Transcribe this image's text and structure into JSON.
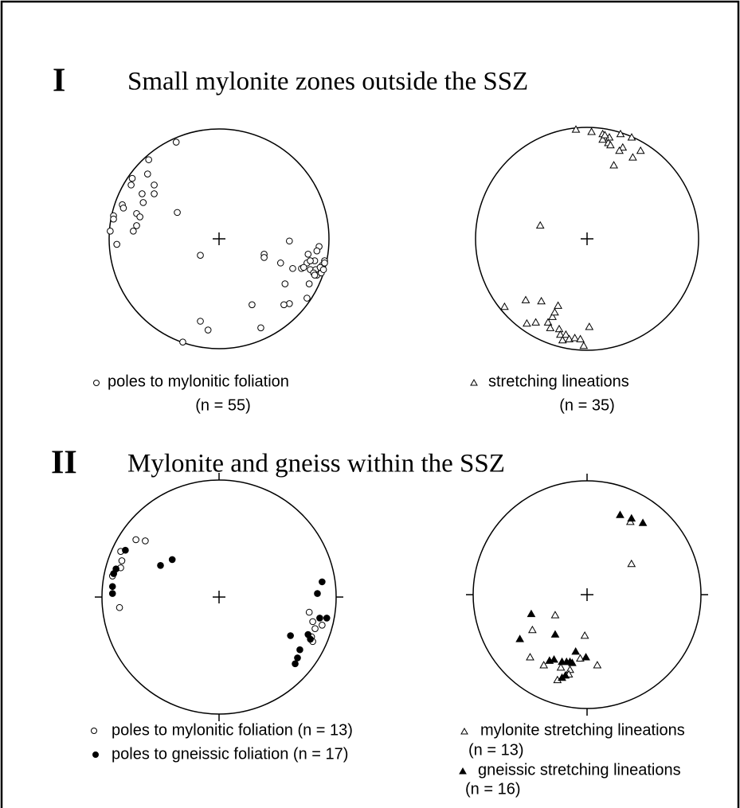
{
  "sections": [
    {
      "numeral": "I",
      "title": "Small mylonite zones outside the SSZ"
    },
    {
      "numeral": "II",
      "title": "Mylonite and gneiss within the SSZ"
    }
  ],
  "chart_data": [
    {
      "type": "stereonet",
      "xlim": [
        -100,
        100
      ],
      "ylim": [
        -100,
        100
      ],
      "cardinal_ticks": false,
      "series": [
        {
          "name": "poles to  mylonitic foliation",
          "count_label": "(n = 55)",
          "marker": "circle",
          "color": "#000",
          "filled": false,
          "x": [
            -39,
            -64,
            -65,
            -79,
            -59,
            -59,
            -70,
            -88,
            -87,
            -69,
            -96,
            -96,
            -75,
            -72,
            -38,
            -75,
            -78,
            -99,
            -93,
            -17,
            41,
            41,
            64,
            91,
            89,
            81,
            56,
            80,
            87,
            96,
            94,
            75,
            67,
            83,
            88,
            92,
            96,
            89,
            86,
            93,
            83,
            60,
            82,
            80,
            64,
            59,
            30,
            -17,
            -10,
            38,
            -33,
            87,
            77,
            95,
            -80
          ],
          "values": [
            88,
            72,
            59,
            55,
            49,
            41,
            41,
            31,
            28,
            33,
            21,
            18,
            23,
            20,
            24,
            12,
            7,
            7,
            -5,
            -15,
            -14,
            -17,
            -2,
            -7,
            -11,
            -14,
            -22,
            -22,
            -20,
            -20,
            -24,
            -27,
            -27,
            -28,
            -28,
            -26,
            -22,
            -33,
            -31,
            -31,
            -20,
            -41,
            -41,
            -54,
            -59,
            -60,
            -60,
            -75,
            -83,
            -81,
            -94,
            -33,
            -26,
            -28,
            49
          ]
        }
      ]
    },
    {
      "type": "stereonet",
      "xlim": [
        -100,
        100
      ],
      "ylim": [
        -100,
        100
      ],
      "cardinal_ticks": false,
      "series": [
        {
          "name": "stretching lineations",
          "count_label": "(n = 35)",
          "marker": "triangle",
          "color": "#000",
          "filled": false,
          "x": [
            -10,
            4,
            14,
            14,
            20,
            30,
            40,
            19,
            21,
            32,
            29,
            48,
            41,
            24,
            16,
            -42,
            -74,
            -55,
            -41,
            -26,
            -54,
            -46,
            -35,
            -31,
            -29,
            -33,
            -25,
            -24,
            -19,
            -16,
            -11,
            -22,
            -3,
            2,
            -6
          ],
          "values": [
            98,
            96,
            94,
            89,
            91,
            94,
            91,
            86,
            84,
            82,
            79,
            79,
            73,
            66,
            93,
            12,
            -61,
            -55,
            -56,
            -60,
            -76,
            -75,
            -75,
            -70,
            -66,
            -80,
            -81,
            -86,
            -86,
            -90,
            -89,
            -91,
            -96,
            -79,
            -90
          ]
        }
      ]
    },
    {
      "type": "stereonet",
      "xlim": [
        -100,
        100
      ],
      "ylim": [
        -100,
        100
      ],
      "cardinal_ticks": true,
      "series": [
        {
          "name": "poles to mylonitic foliation (n = 13)",
          "marker": "circle",
          "color": "#000",
          "filled": false,
          "x": [
            -71,
            -63,
            -84,
            -83,
            -84,
            -91,
            -85,
            77,
            80,
            82,
            79,
            80,
            88
          ],
          "values": [
            49,
            48,
            39,
            31,
            25,
            18,
            -9,
            -13,
            -21,
            -27,
            -34,
            -38,
            -24
          ]
        },
        {
          "name": "poles to gneissic foliation (n = 17)",
          "marker": "circle",
          "color": "#000",
          "filled": true,
          "x": [
            -80,
            -88,
            -90,
            -91,
            -91,
            -50,
            -40,
            88,
            84,
            86,
            92,
            76,
            61,
            78,
            69,
            67,
            65
          ],
          "values": [
            40,
            24,
            20,
            9,
            3,
            27,
            32,
            13,
            3,
            -18,
            -18,
            -32,
            -33,
            -36,
            -45,
            -52,
            -57
          ]
        }
      ]
    },
    {
      "type": "stereonet",
      "xlim": [
        -100,
        100
      ],
      "ylim": [
        -100,
        100
      ],
      "cardinal_ticks": true,
      "series": [
        {
          "name": "mylonite stretching lineations",
          "count_label": "(n = 13)",
          "marker": "triangle",
          "color": "#000",
          "filled": false,
          "x": [
            38,
            39,
            -48,
            -28,
            -2,
            -50,
            9,
            -38,
            -23,
            -15,
            -16,
            -26,
            -6
          ],
          "values": [
            64,
            27,
            -31,
            -18,
            -36,
            -55,
            -62,
            -62,
            -64,
            -66,
            -70,
            -75,
            -56
          ]
        },
        {
          "name": "gneissic stretching lineations",
          "count_label": "(n = 16)",
          "marker": "triangle",
          "color": "#000",
          "filled": true,
          "x": [
            29,
            39,
            49,
            -49,
            -59,
            -28,
            -29,
            -22,
            -18,
            -15,
            -10,
            -1,
            -19,
            -22,
            -13,
            -33
          ],
          "values": [
            70,
            67,
            63,
            -17,
            -39,
            -35,
            -57,
            -59,
            -59,
            -59,
            -50,
            -55,
            -71,
            -73,
            -60,
            -58
          ]
        }
      ]
    }
  ]
}
